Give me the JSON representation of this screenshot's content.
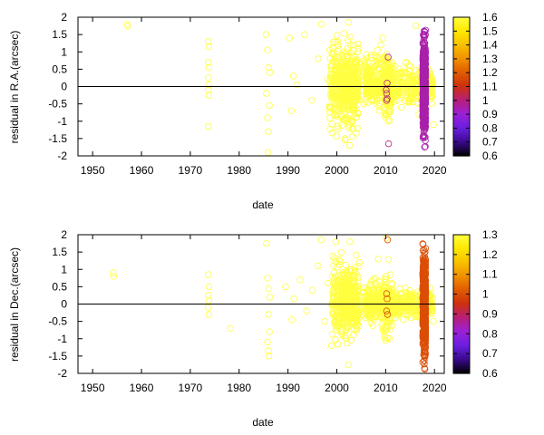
{
  "chart_data": [
    {
      "type": "scatter",
      "xlabel": "date",
      "ylabel": "residual in R.A.(arcsec)",
      "xlim": [
        1947,
        2022
      ],
      "ylim": [
        -2,
        2
      ],
      "xticks": [
        "1950",
        "1960",
        "1970",
        "1980",
        "1990",
        "2000",
        "2010",
        "2020"
      ],
      "yticks": [
        "2",
        "1.5",
        "1",
        "0.5",
        "0",
        "-0.5",
        "-1",
        "-1.5",
        "-2"
      ],
      "zero_line": true,
      "colorbar": {
        "range": [
          0.6,
          1.6
        ],
        "ticks": [
          "1.6",
          "1.5",
          "1.4",
          "1.3",
          "1.2",
          "1.1",
          "1",
          "0.9",
          "0.8",
          "0.7",
          "0.6"
        ],
        "palette": [
          "#000000",
          "#3a0a8c",
          "#6a1fe0",
          "#9a20d8",
          "#b81f7a",
          "#cc3010",
          "#e05a00",
          "#f09000",
          "#f8c000",
          "#ffe800",
          "#ffff40"
        ]
      },
      "series": [
        {
          "points": [
            [
              1957,
              1.8
            ],
            [
              1957.2,
              1.75
            ],
            [
              1973.7,
              1.3
            ],
            [
              1973.8,
              1.15
            ],
            [
              1973.7,
              0.7
            ],
            [
              1973.8,
              0.55
            ],
            [
              1973.7,
              0.25
            ],
            [
              1973.8,
              0.05
            ],
            [
              1973.7,
              -0.1
            ],
            [
              1973.8,
              -0.25
            ],
            [
              1973.7,
              -1.15
            ],
            [
              1985.5,
              1.5
            ],
            [
              1985.8,
              1.05
            ],
            [
              1986,
              0.55
            ],
            [
              1986.3,
              0.4
            ],
            [
              1985.6,
              -0.2
            ],
            [
              1986.2,
              -0.55
            ],
            [
              1985.8,
              -0.9
            ],
            [
              1986,
              -1.3
            ],
            [
              1985.9,
              -1.9
            ],
            [
              1990.3,
              1.4
            ],
            [
              1991.1,
              0.3
            ],
            [
              1990.7,
              -0.7
            ],
            [
              1991.8,
              0.05
            ],
            [
              1993.4,
              1.5
            ],
            [
              1994.9,
              -0.4
            ],
            [
              1996.2,
              0.8
            ],
            [
              1996.8,
              1.8
            ],
            [
              1998.1,
              0.2
            ],
            [
              1998.5,
              -0.6
            ],
            [
              1999.2,
              1.1
            ],
            [
              2000,
              0.45
            ],
            [
              2000.5,
              -0.3
            ],
            [
              2001.2,
              0.9
            ],
            [
              2001.8,
              -0.9
            ],
            [
              2002.4,
              1.85
            ],
            [
              2002.6,
              -1.7
            ],
            [
              2003.1,
              0.6
            ],
            [
              2003.5,
              -0.1
            ],
            [
              2004.2,
              -1.2
            ],
            [
              2004.8,
              0.3
            ],
            [
              2005.5,
              -0.5
            ],
            [
              2006.3,
              0.25
            ],
            [
              2006.9,
              -0.2
            ],
            [
              2007.5,
              0.5
            ],
            [
              2008.2,
              -0.4
            ],
            [
              2009,
              1.2
            ],
            [
              2009.4,
              1.4
            ],
            [
              2010.5,
              -1.0
            ],
            [
              2011.2,
              0.7
            ],
            [
              2011.8,
              -0.3
            ],
            [
              2012.5,
              0.2
            ],
            [
              2013.2,
              -0.6
            ],
            [
              2014,
              0.4
            ],
            [
              2014.8,
              -0.2
            ],
            [
              2015.5,
              0.1
            ],
            [
              2016.2,
              1.75
            ],
            [
              2016.8,
              -0.8
            ],
            [
              2017.5,
              0.3
            ],
            [
              2019.5,
              -0.3
            ],
            [
              2019.7,
              0.1
            ],
            [
              2019.8,
              -1.1
            ]
          ],
          "clouds": [
            {
              "x": [
                1998.5,
                2004.5
              ],
              "y": [
                -1.8,
                1.9
              ],
              "n": 320
            },
            {
              "x": [
                2000.5,
                2004.5
              ],
              "y": [
                -0.9,
                0.9
              ],
              "n": 150
            },
            {
              "x": [
                2005.5,
                2011.5
              ],
              "y": [
                -1.0,
                1.2
              ],
              "n": 230
            },
            {
              "x": [
                2006,
                2010
              ],
              "y": [
                -0.35,
                0.35
              ],
              "n": 130
            },
            {
              "x": [
                2010,
                2018
              ],
              "y": [
                -0.8,
                0.8
              ],
              "n": 220
            },
            {
              "x": [
                2009.5,
                2011
              ],
              "y": [
                -1.6,
                1.8
              ],
              "n": 70
            },
            {
              "x": [
                2018.5,
                2019.6
              ],
              "y": [
                -0.7,
                0.7
              ],
              "n": 60
            }
          ],
          "value": 1.6
        },
        {
          "points": [
            [
              2010.2,
              -0.2
            ],
            [
              2010.2,
              -0.4
            ],
            [
              2010.3,
              -0.35
            ],
            [
              2010.1,
              -0.1
            ],
            [
              2010.3,
              0.1
            ],
            [
              2010.5,
              0.85
            ],
            [
              2010.6,
              -1.65
            ]
          ],
          "value": 1.0
        },
        {
          "points": [],
          "clouds": [
            {
              "x": [
                2017.6,
                2018.2
              ],
              "y": [
                -2,
                2
              ],
              "n": 500
            }
          ],
          "value": 0.95
        }
      ]
    },
    {
      "type": "scatter",
      "xlabel": "date",
      "ylabel": "residual in Dec.(arcsec)",
      "xlim": [
        1947,
        2022
      ],
      "ylim": [
        -2,
        2
      ],
      "xticks": [
        "1950",
        "1960",
        "1970",
        "1980",
        "1990",
        "2000",
        "2010",
        "2020"
      ],
      "yticks": [
        "2",
        "1.5",
        "1",
        "0.5",
        "0",
        "-0.5",
        "-1",
        "-1.5",
        "-2"
      ],
      "zero_line": true,
      "colorbar": {
        "range": [
          0.6,
          1.3
        ],
        "ticks": [
          "1.3",
          "1.2",
          "1.1",
          "1",
          "0.9",
          "0.8",
          "0.7",
          "0.6"
        ],
        "palette": [
          "#000000",
          "#3a0a8c",
          "#6a1fe0",
          "#9a20d8",
          "#b81f7a",
          "#cc3010",
          "#e05a00",
          "#f09000",
          "#f8c000",
          "#ffe800",
          "#ffff40"
        ]
      },
      "series": [
        {
          "points": [
            [
              1954.2,
              0.9
            ],
            [
              1954.3,
              0.8
            ],
            [
              1973.7,
              0.85
            ],
            [
              1973.8,
              0.5
            ],
            [
              1973.7,
              0.25
            ],
            [
              1973.8,
              0.1
            ],
            [
              1973.7,
              -0.1
            ],
            [
              1973.8,
              -0.3
            ],
            [
              1978.2,
              -0.7
            ],
            [
              1985.6,
              1.75
            ],
            [
              1985.8,
              0.75
            ],
            [
              1986,
              0.45
            ],
            [
              1986.3,
              0.2
            ],
            [
              1986,
              -0.3
            ],
            [
              1986.2,
              -0.8
            ],
            [
              1985.8,
              -1.1
            ],
            [
              1986,
              -1.35
            ],
            [
              1986.1,
              -1.5
            ],
            [
              1989.5,
              0.5
            ],
            [
              1991.2,
              0.15
            ],
            [
              1990.8,
              -0.45
            ],
            [
              1992.5,
              0.7
            ],
            [
              1993.8,
              -0.2
            ],
            [
              1995,
              0.4
            ],
            [
              1996.2,
              1.1
            ],
            [
              1996.8,
              1.85
            ],
            [
              1997.5,
              -0.5
            ],
            [
              1998.2,
              0.6
            ],
            [
              1998.9,
              -1.2
            ],
            [
              1999.8,
              1.8
            ],
            [
              2000.5,
              0.1
            ],
            [
              2001,
              -0.8
            ],
            [
              2001.8,
              0.9
            ],
            [
              2002.4,
              -1.75
            ],
            [
              2002.7,
              1.8
            ],
            [
              2003.3,
              0.3
            ],
            [
              2004,
              -0.4
            ],
            [
              2004.6,
              1.2
            ],
            [
              2005.2,
              -0.3
            ],
            [
              2006.5,
              0.4
            ],
            [
              2007.1,
              -0.4
            ],
            [
              2007.8,
              0.1
            ],
            [
              2008.5,
              1.3
            ],
            [
              2009.2,
              -0.6
            ],
            [
              2010.1,
              1.9
            ],
            [
              2010.8,
              -1.0
            ],
            [
              2011.3,
              0.6
            ],
            [
              2012,
              -0.4
            ],
            [
              2013,
              0.3
            ],
            [
              2014,
              -0.3
            ],
            [
              2014.9,
              0.25
            ],
            [
              2015.7,
              -0.1
            ],
            [
              2016.5,
              0.35
            ],
            [
              2017,
              -0.2
            ],
            [
              2019.3,
              0.3
            ],
            [
              2019.6,
              -0.2
            ],
            [
              2019.6,
              0.15
            ],
            [
              2019.8,
              -0.5
            ]
          ],
          "clouds": [
            {
              "x": [
                1999,
                2004.5
              ],
              "y": [
                -1.5,
                1.7
              ],
              "n": 300
            },
            {
              "x": [
                2001,
                2004.5
              ],
              "y": [
                -0.6,
                0.8
              ],
              "n": 140
            },
            {
              "x": [
                2005.5,
                2011.5
              ],
              "y": [
                -0.9,
                1.0
              ],
              "n": 200
            },
            {
              "x": [
                2006,
                2010
              ],
              "y": [
                -0.3,
                0.3
              ],
              "n": 120
            },
            {
              "x": [
                2010,
                2018
              ],
              "y": [
                -0.55,
                0.55
              ],
              "n": 220
            },
            {
              "x": [
                2009.5,
                2011
              ],
              "y": [
                -1.7,
                1.5
              ],
              "n": 60
            },
            {
              "x": [
                2018.5,
                2019.6
              ],
              "y": [
                -0.6,
                0.6
              ],
              "n": 50
            }
          ],
          "value": 1.3
        },
        {
          "points": [
            [
              2010.2,
              0.3
            ],
            [
              2010.3,
              0.15
            ],
            [
              2010.2,
              -0.2
            ],
            [
              2010.4,
              -0.3
            ],
            [
              2010.4,
              1.85
            ]
          ],
          "value": 1.0
        },
        {
          "points": [],
          "clouds": [
            {
              "x": [
                2017.6,
                2018.2
              ],
              "y": [
                -2,
                2
              ],
              "n": 500
            }
          ],
          "value": 1.0
        }
      ]
    }
  ]
}
